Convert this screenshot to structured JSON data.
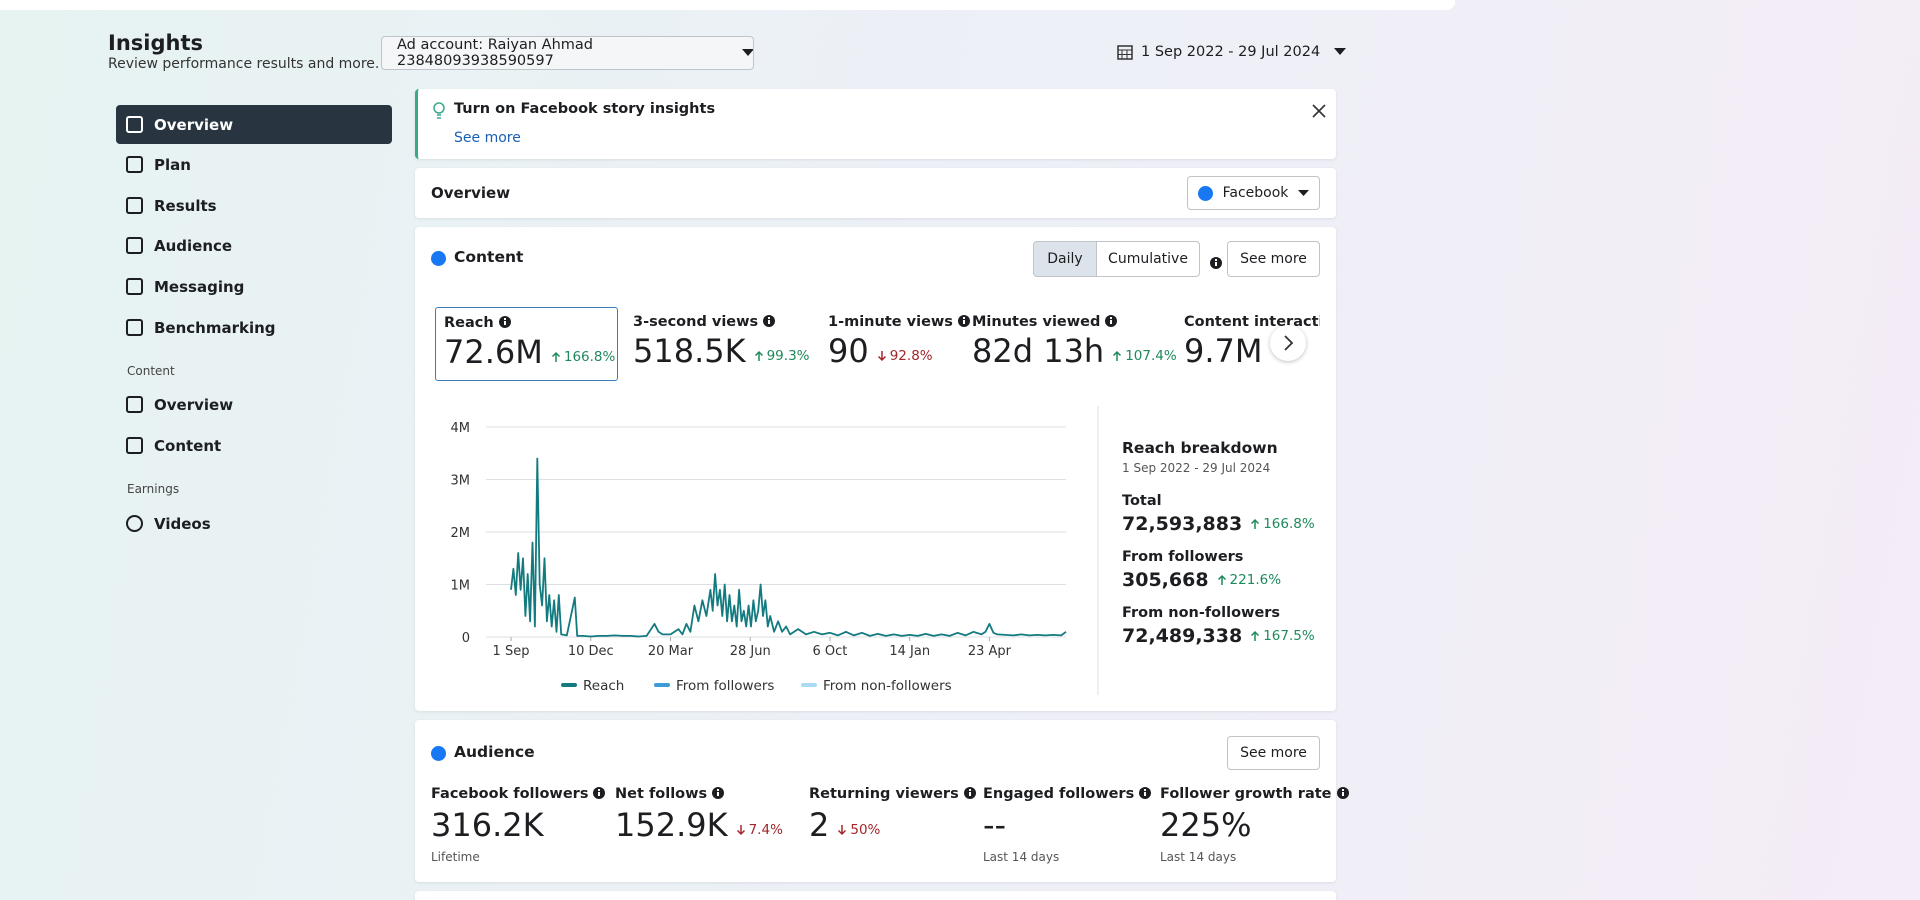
{
  "header": {
    "title": "Insights",
    "subtitle": "Review performance results and more.",
    "ad_account": "Ad account: Raiyan Ahmad 23848093938590597",
    "date_range": "1 Sep 2022 - 29 Jul 2024"
  },
  "sidebar": {
    "items": [
      "Overview",
      "Plan",
      "Results",
      "Audience",
      "Messaging",
      "Benchmarking"
    ],
    "content_section": "Content",
    "content_items": [
      "Overview",
      "Content"
    ],
    "earnings_section": "Earnings",
    "earnings_items": [
      "Videos"
    ]
  },
  "banner": {
    "title": "Turn on Facebook story insights",
    "link": "See more"
  },
  "overview": {
    "title": "Overview",
    "platform": "Facebook"
  },
  "content": {
    "title": "Content",
    "toggle": [
      "Daily",
      "Cumulative"
    ],
    "see_more": "See more",
    "metrics": [
      {
        "label": "Reach",
        "value": "72.6M",
        "change": "166.8%",
        "trend": "up"
      },
      {
        "label": "3-second views",
        "value": "518.5K",
        "change": "99.3%",
        "trend": "up"
      },
      {
        "label": "1-minute views",
        "value": "90",
        "change": "92.8%",
        "trend": "down"
      },
      {
        "label": "Minutes viewed",
        "value": "82d 13h",
        "change": "107.4%",
        "trend": "up"
      },
      {
        "label": "Content interactions",
        "value": "9.7M"
      }
    ],
    "breakdown": {
      "title": "Reach breakdown",
      "date": "1 Sep 2022 - 29 Jul 2024",
      "rows": [
        {
          "label": "Total",
          "value": "72,593,883",
          "change": "166.8%"
        },
        {
          "label": "From followers",
          "value": "305,668",
          "change": "221.6%"
        },
        {
          "label": "From non-followers",
          "value": "72,489,338",
          "change": "167.5%"
        }
      ]
    }
  },
  "chart_data": {
    "type": "line",
    "grid": true,
    "x": [
      0,
      3,
      6,
      9,
      12,
      15,
      18,
      21,
      24,
      27,
      30,
      33,
      36,
      39,
      42,
      45,
      48,
      51,
      54,
      57,
      60,
      63,
      70,
      80,
      83,
      90,
      100,
      110,
      120,
      130,
      140,
      150,
      160,
      170,
      180,
      185,
      190,
      200,
      205,
      210,
      215,
      220,
      225,
      230,
      235,
      240,
      245,
      250,
      253,
      256,
      259,
      262,
      265,
      268,
      271,
      274,
      277,
      280,
      283,
      286,
      289,
      292,
      295,
      298,
      301,
      304,
      307,
      310,
      313,
      316,
      319,
      322,
      325,
      330,
      335,
      340,
      345,
      350,
      360,
      370,
      380,
      390,
      400,
      410,
      420,
      430,
      440,
      450,
      460,
      470,
      480,
      490,
      500,
      510,
      520,
      530,
      540,
      550,
      560,
      570,
      580,
      590,
      595,
      600,
      605,
      610,
      620,
      630,
      640,
      650,
      660,
      670,
      680,
      690,
      696
    ],
    "series": [
      {
        "name": "Reach",
        "color": "#137b80",
        "values": [
          900000,
          1300000,
          800000,
          1600000,
          900000,
          1500000,
          400000,
          1200000,
          300000,
          1800000,
          200000,
          3400000,
          1000000,
          600000,
          1500000,
          300000,
          800000,
          200000,
          700000,
          100000,
          800000,
          50000,
          30000,
          750000,
          20000,
          20000,
          10000,
          20000,
          20000,
          30000,
          20000,
          20000,
          10000,
          20000,
          250000,
          100000,
          50000,
          50000,
          100000,
          150000,
          50000,
          250000,
          100000,
          600000,
          300000,
          700000,
          400000,
          900000,
          500000,
          1200000,
          600000,
          900000,
          400000,
          1000000,
          300000,
          800000,
          300000,
          600000,
          200000,
          900000,
          300000,
          500000,
          200000,
          600000,
          200000,
          700000,
          300000,
          500000,
          1000000,
          400000,
          700000,
          200000,
          400000,
          100000,
          300000,
          100000,
          200000,
          50000,
          150000,
          50000,
          100000,
          50000,
          80000,
          30000,
          100000,
          30000,
          80000,
          20000,
          60000,
          20000,
          50000,
          20000,
          40000,
          20000,
          60000,
          20000,
          50000,
          20000,
          80000,
          30000,
          100000,
          50000,
          100000,
          250000,
          80000,
          50000,
          40000,
          30000,
          50000,
          30000,
          40000,
          30000,
          40000,
          30000,
          100000
        ]
      }
    ],
    "legend": [
      {
        "name": "Reach",
        "color": "#137b80"
      },
      {
        "name": "From followers",
        "color": "#3d9bd6"
      },
      {
        "name": "From non-followers",
        "color": "#a9dbf2"
      }
    ],
    "xlim": [
      0,
      696
    ],
    "xticks": [
      {
        "value": 0,
        "label": "1 Sep"
      },
      {
        "value": 100,
        "label": "10 Dec"
      },
      {
        "value": 200,
        "label": "20 Mar"
      },
      {
        "value": 300,
        "label": "28 Jun"
      },
      {
        "value": 400,
        "label": "6 Oct"
      },
      {
        "value": 500,
        "label": "14 Jan"
      },
      {
        "value": 600,
        "label": "23 Apr"
      }
    ],
    "ylim": [
      0,
      4000000
    ],
    "yticks": [
      0,
      {
        "value": 1000000,
        "label": "1M"
      },
      {
        "value": 2000000,
        "label": "2M"
      },
      {
        "value": 3000000,
        "label": "3M"
      },
      {
        "value": 4000000,
        "label": "4M"
      }
    ]
  },
  "audience": {
    "title": "Audience",
    "see_more": "See more",
    "metrics": [
      {
        "label": "Facebook followers",
        "value": "316.2K",
        "note": "Lifetime"
      },
      {
        "label": "Net follows",
        "value": "152.9K",
        "change": "7.4%",
        "trend": "down"
      },
      {
        "label": "Returning viewers",
        "value": "2",
        "change": "50%",
        "trend": "down"
      },
      {
        "label": "Engaged followers",
        "value": "--",
        "note": "Last 14 days"
      },
      {
        "label": "Follower growth rate",
        "value": "225%",
        "note": "Last 14 days"
      }
    ]
  }
}
